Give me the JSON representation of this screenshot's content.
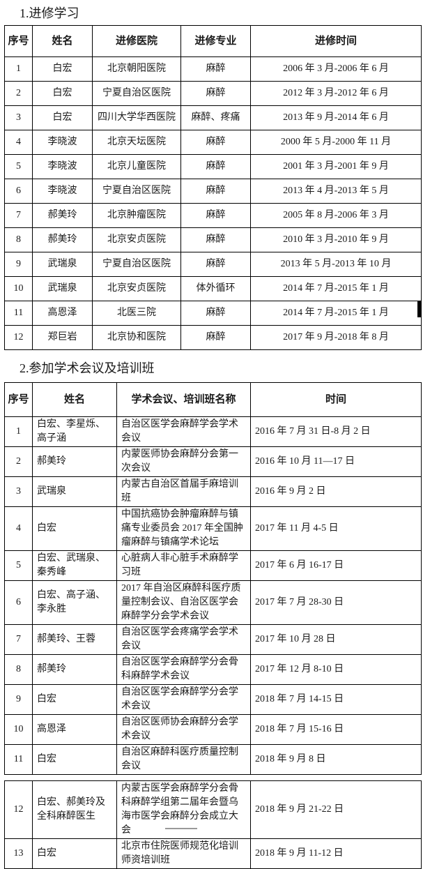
{
  "page": {
    "background_color": "#ffffff",
    "text_color": "#1a1a1a",
    "border_color": "#000000",
    "artifact_mark_color": "#000000",
    "bottom_line_color": "#999999"
  },
  "section1": {
    "title": "1.进修学习",
    "table": {
      "headers": [
        "序号",
        "姓名",
        "进修医院",
        "进修专业",
        "进修时间"
      ],
      "rows": [
        [
          "1",
          "白宏",
          "北京朝阳医院",
          "麻醉",
          "2006 年 3 月-2006 年 6 月"
        ],
        [
          "2",
          "白宏",
          "宁夏自治区医院",
          "麻醉",
          "2012 年 3 月-2012 年 6 月"
        ],
        [
          "3",
          "白宏",
          "四川大学华西医院",
          "麻醉、疼痛",
          "2013 年 9 月-2014 年 6 月"
        ],
        [
          "4",
          "李晓波",
          "北京天坛医院",
          "麻醉",
          "2000 年 5 月-2000 年 11 月"
        ],
        [
          "5",
          "李晓波",
          "北京儿童医院",
          "麻醉",
          "2001 年 3 月-2001 年 9 月"
        ],
        [
          "6",
          "李晓波",
          "宁夏自治区医院",
          "麻醉",
          "2013 年 4 月-2013 年 5 月"
        ],
        [
          "7",
          "郝美玲",
          "北京肿瘤医院",
          "麻醉",
          "2005 年 8 月-2006 年 3 月"
        ],
        [
          "8",
          "郝美玲",
          "北京安贞医院",
          "麻醉",
          "2010 年 3 月-2010 年 9 月"
        ],
        [
          "9",
          "武瑞泉",
          "宁夏自治区医院",
          "麻醉",
          "2013 年 5 月-2013 年 10 月"
        ],
        [
          "10",
          "武瑞泉",
          "北京安贞医院",
          "体外循环",
          "2014 年 7 月-2015 年 1 月"
        ],
        [
          "11",
          "高恩泽",
          "北医三院",
          "麻醉",
          "2014 年 7 月-2015 年 1 月"
        ],
        [
          "12",
          "郑巨岩",
          "北京协和医院",
          "麻醉",
          "2017 年 9 月-2018 年 8 月"
        ]
      ]
    }
  },
  "section2": {
    "title": "2.参加学术会议及培训班",
    "table": {
      "headers": [
        "序号",
        "姓名",
        "学术会议、培训班名称",
        "时间"
      ],
      "rows_part1": [
        [
          "1",
          "白宏、李星烁、高子涵",
          "自治区医学会麻醉学会学术会议",
          "2016 年 7 月 31 日-8 月 2 日"
        ],
        [
          "2",
          "郝美玲",
          "内蒙医师协会麻醉分会第一次会议",
          "2016 年 10 月 11—17 日"
        ],
        [
          "3",
          "武瑞泉",
          "内蒙古自治区首届手麻培训班",
          "2016 年 9 月 2 日"
        ],
        [
          "4",
          "白宏",
          "中国抗癌协会肿瘤麻醉与镇痛专业委员会 2017 年全国肿瘤麻醉与镇痛学术论坛",
          "2017 年 11 月 4-5 日"
        ],
        [
          "5",
          "白宏、武瑞泉、秦秀峰",
          "心脏病人非心脏手术麻醉学习班",
          "2017 年 6 月 16-17 日"
        ],
        [
          "6",
          "白宏、高子涵、李永胜",
          "2017 年自治区麻醉科医疗质量控制会议、自治区医学会麻醉学分会学术会议",
          "2017 年 7 月 28-30 日"
        ],
        [
          "7",
          "郝美玲、王蓉",
          "自治区医学会疼痛学会学术会议",
          "2017 年 10 月 28 日"
        ],
        [
          "8",
          "郝美玲",
          "自治区医学会麻醉学分会骨科麻醉学术会议",
          "2017 年 12 月 8-10 日"
        ],
        [
          "9",
          "白宏",
          "自治区医学会麻醉学分会学术会议",
          "2018 年 7 月 14-15 日"
        ],
        [
          "10",
          "高恩泽",
          "自治区医师协会麻醉分会学术会议",
          "2018 年 7 月 15-16 日"
        ],
        [
          "11",
          "白宏",
          "自治区麻醉科医疗质量控制会议",
          "2018 年 9 月 8 日"
        ]
      ],
      "rows_part2": [
        [
          "12",
          "白宏、郝美玲及全科麻醉医生",
          "内蒙古医学会麻醉学分会骨科麻醉学组第二届年会暨乌海市医学会麻醉分会成立大会",
          "2018 年 9 月 21-22 日"
        ],
        [
          "13",
          "白宏",
          "北京市住院医师规范化培训师资培训班",
          "2018 年 9 月 11-12 日"
        ]
      ]
    }
  }
}
